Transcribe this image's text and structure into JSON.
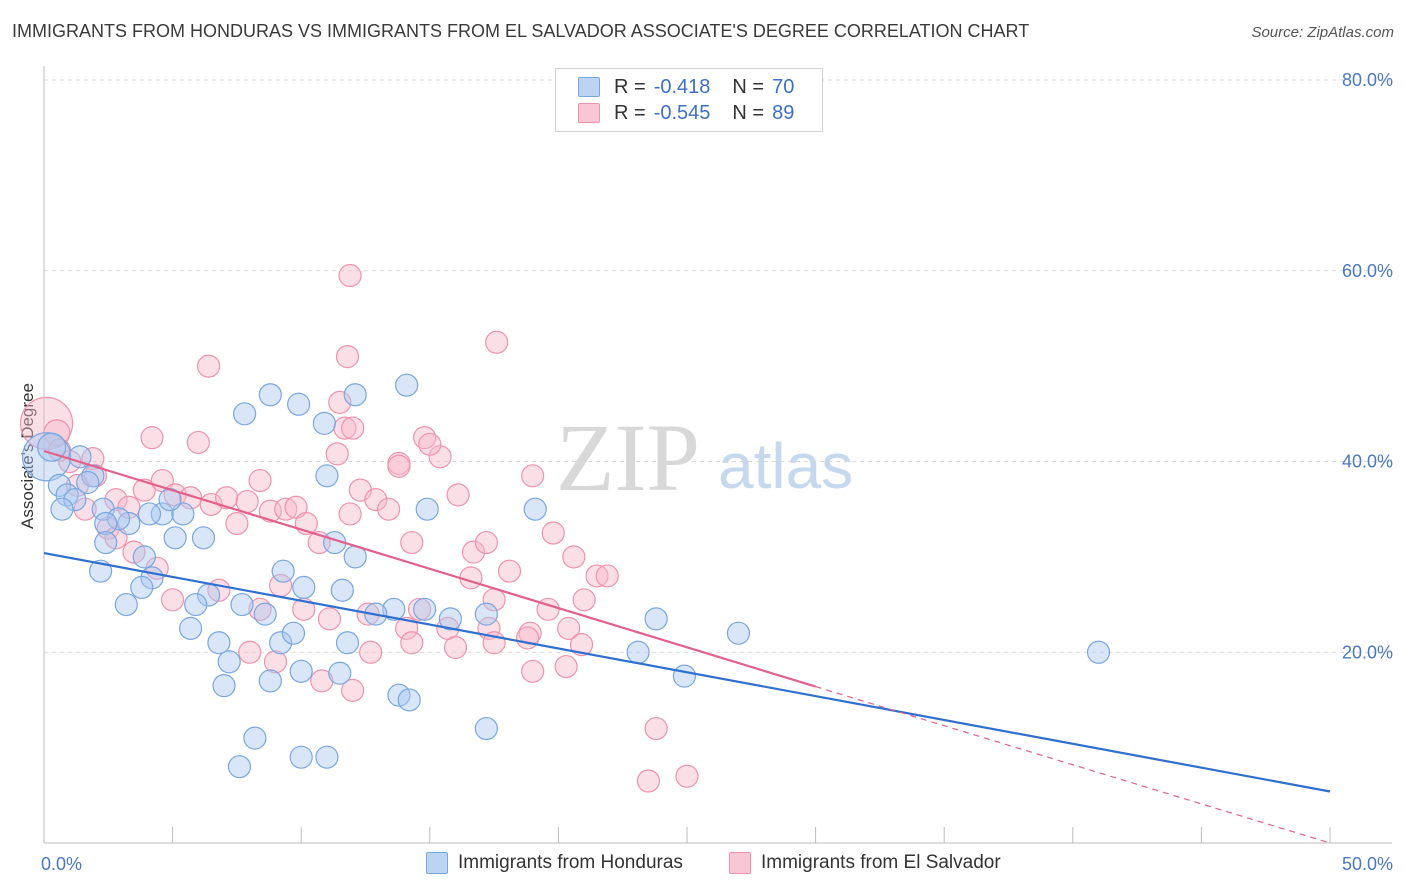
{
  "title": "IMMIGRANTS FROM HONDURAS VS IMMIGRANTS FROM EL SALVADOR ASSOCIATE'S DEGREE CORRELATION CHART",
  "source": "Source: ZipAtlas.com",
  "watermark": {
    "zip": "ZIP",
    "atlas": "atlas"
  },
  "legend": {
    "rows": [
      {
        "r_label": "R =",
        "r_value": "-0.418",
        "n_label": "N =",
        "n_value": "70"
      },
      {
        "r_label": "R =",
        "r_value": "-0.545",
        "n_label": "N =",
        "n_value": "89"
      }
    ]
  },
  "colors": {
    "honduras_fill": "#a9c7ef",
    "honduras_stroke": "#7aa6e0",
    "honduras_line": "#2f6fd0",
    "salvador_fill": "#f6b8ca",
    "salvador_stroke": "#ee93ad",
    "salvador_line": "#e26089"
  },
  "chart_data": {
    "type": "scatter",
    "title": "IMMIGRANTS FROM HONDURAS VS IMMIGRANTS FROM EL SALVADOR ASSOCIATE'S DEGREE CORRELATION CHART",
    "xlabel": "",
    "ylabel": "Associate's Degree",
    "xlim": [
      0,
      50
    ],
    "ylim": [
      0,
      80
    ],
    "x_tick_labels": [
      "0.0%",
      "50.0%"
    ],
    "y_tick_labels": [
      "20.0%",
      "40.0%",
      "60.0%",
      "80.0%"
    ],
    "y_ticks": [
      20,
      40,
      60,
      80
    ],
    "grid": true,
    "legend_position": "top-center",
    "series": [
      {
        "name": "Immigrants from Honduras",
        "r": -0.418,
        "n": 70,
        "trend": {
          "x0": 0,
          "y0": 30.4,
          "x1": 50,
          "y1": 5.4
        },
        "points": [
          [
            0.1,
            40.5,
            24
          ],
          [
            0.3,
            41.5,
            14
          ],
          [
            0.6,
            37.5,
            11
          ],
          [
            0.9,
            36.5,
            11
          ],
          [
            1.2,
            36,
            11
          ],
          [
            2.3,
            35,
            11
          ],
          [
            0.7,
            35,
            11
          ],
          [
            1.9,
            38.5,
            11
          ],
          [
            3.3,
            33.5,
            11
          ],
          [
            4.6,
            34.5,
            11
          ],
          [
            2.9,
            34,
            11
          ],
          [
            4.1,
            34.5,
            11
          ],
          [
            5.4,
            34.5,
            11
          ],
          [
            1.7,
            37.8,
            11
          ],
          [
            2.4,
            33.5,
            11
          ],
          [
            3.9,
            30,
            11
          ],
          [
            1.4,
            40.5,
            11
          ],
          [
            4.2,
            27.8,
            11
          ],
          [
            3.8,
            26.8,
            11
          ],
          [
            2.4,
            31.5,
            11
          ],
          [
            6.4,
            26,
            11
          ],
          [
            7.7,
            25,
            11
          ],
          [
            8.6,
            24,
            11
          ],
          [
            5.9,
            25,
            11
          ],
          [
            5.7,
            22.5,
            11
          ],
          [
            6.8,
            21,
            11
          ],
          [
            7.2,
            19,
            11
          ],
          [
            9.2,
            21,
            11
          ],
          [
            9.7,
            22,
            11
          ],
          [
            7.0,
            16.5,
            11
          ],
          [
            8.8,
            17,
            11
          ],
          [
            10.0,
            18,
            11
          ],
          [
            11.5,
            17.8,
            11
          ],
          [
            10.1,
            26.8,
            11
          ],
          [
            9.3,
            28.5,
            11
          ],
          [
            11.6,
            26.5,
            11
          ],
          [
            11.0,
            38.5,
            11
          ],
          [
            12.1,
            30,
            11
          ],
          [
            11.3,
            31.5,
            11
          ],
          [
            13.6,
            24.5,
            11
          ],
          [
            14.8,
            24.5,
            11
          ],
          [
            15.8,
            23.5,
            11
          ],
          [
            17.2,
            24,
            11
          ],
          [
            13.8,
            15.5,
            11
          ],
          [
            14.2,
            15,
            11
          ],
          [
            8.2,
            11,
            11
          ],
          [
            7.6,
            8,
            11
          ],
          [
            10.0,
            9,
            11
          ],
          [
            11.0,
            9,
            11
          ],
          [
            17.2,
            12,
            11
          ],
          [
            7.8,
            45,
            11
          ],
          [
            8.8,
            47,
            11
          ],
          [
            12.1,
            47,
            11
          ],
          [
            14.1,
            48,
            11
          ],
          [
            14.9,
            35,
            11
          ],
          [
            19.1,
            35,
            11
          ],
          [
            9.9,
            46,
            11
          ],
          [
            10.9,
            44,
            11
          ],
          [
            23.8,
            23.5,
            11
          ],
          [
            23.1,
            20,
            11
          ],
          [
            24.9,
            17.5,
            11
          ],
          [
            27.0,
            22,
            11
          ],
          [
            41.0,
            20,
            11
          ],
          [
            2.2,
            28.5,
            11
          ],
          [
            6.2,
            32,
            11
          ],
          [
            4.9,
            36,
            11
          ],
          [
            5.1,
            32,
            11
          ],
          [
            11.8,
            21,
            11
          ],
          [
            12.9,
            24,
            11
          ],
          [
            3.2,
            25,
            11
          ]
        ]
      },
      {
        "name": "Immigrants from El Salvador",
        "r": -0.545,
        "n": 89,
        "trend": {
          "x0": 0,
          "y0": 41.1,
          "x1": 30,
          "y1": 16.4
        },
        "trend_dashed_to": {
          "x": 50,
          "y": 0
        },
        "points": [
          [
            0.1,
            44,
            26
          ],
          [
            0.5,
            43,
            13
          ],
          [
            1.0,
            40,
            11
          ],
          [
            1.3,
            37.5,
            11
          ],
          [
            1.9,
            40.3,
            11
          ],
          [
            2.0,
            38.5,
            11
          ],
          [
            0.6,
            41.2,
            11
          ],
          [
            1.6,
            35,
            11
          ],
          [
            2.8,
            36,
            11
          ],
          [
            2.5,
            33,
            11
          ],
          [
            3.3,
            35.2,
            11
          ],
          [
            3.9,
            37,
            11
          ],
          [
            4.2,
            42.5,
            11
          ],
          [
            4.6,
            38,
            11
          ],
          [
            5.1,
            36.5,
            11
          ],
          [
            5.7,
            36.2,
            11
          ],
          [
            6.0,
            42,
            11
          ],
          [
            6.5,
            35.5,
            11
          ],
          [
            7.1,
            36.2,
            11
          ],
          [
            7.5,
            33.5,
            11
          ],
          [
            7.9,
            35.8,
            11
          ],
          [
            8.4,
            38,
            11
          ],
          [
            8.8,
            34.8,
            11
          ],
          [
            9.4,
            35,
            11
          ],
          [
            9.8,
            35.2,
            11
          ],
          [
            10.2,
            33.5,
            11
          ],
          [
            10.7,
            31.5,
            11
          ],
          [
            11.4,
            40.8,
            11
          ],
          [
            11.9,
            34.5,
            11
          ],
          [
            12.3,
            37,
            11
          ],
          [
            12.9,
            36,
            11
          ],
          [
            13.4,
            35,
            11
          ],
          [
            13.8,
            39.8,
            11
          ],
          [
            14.3,
            31.5,
            11
          ],
          [
            14.8,
            42.5,
            11
          ],
          [
            15.4,
            40.5,
            11
          ],
          [
            16.1,
            36.5,
            11
          ],
          [
            16.7,
            30.5,
            11
          ],
          [
            17.2,
            31.5,
            11
          ],
          [
            18.1,
            28.5,
            11
          ],
          [
            19.0,
            38.5,
            11
          ],
          [
            19.8,
            32.5,
            11
          ],
          [
            20.6,
            30,
            11
          ],
          [
            21.5,
            28,
            11
          ],
          [
            6.4,
            50,
            11
          ],
          [
            11.5,
            46.2,
            11
          ],
          [
            11.7,
            43.5,
            11
          ],
          [
            12.0,
            43.5,
            11
          ],
          [
            13.8,
            39.5,
            11
          ],
          [
            15.0,
            41.8,
            11
          ],
          [
            11.8,
            51,
            11
          ],
          [
            17.6,
            52.5,
            11
          ],
          [
            11.9,
            59.5,
            11
          ],
          [
            8.4,
            24.5,
            11
          ],
          [
            10.1,
            24.5,
            11
          ],
          [
            11.1,
            23.5,
            11
          ],
          [
            12.6,
            24,
            11
          ],
          [
            14.1,
            22.5,
            11
          ],
          [
            15.7,
            22.5,
            11
          ],
          [
            17.3,
            22.5,
            11
          ],
          [
            18.9,
            22,
            11
          ],
          [
            20.4,
            22.5,
            11
          ],
          [
            12.7,
            20,
            11
          ],
          [
            14.3,
            21,
            11
          ],
          [
            16.0,
            20.5,
            11
          ],
          [
            17.5,
            21,
            11
          ],
          [
            19.0,
            18,
            11
          ],
          [
            20.3,
            18.5,
            11
          ],
          [
            9.0,
            19,
            11
          ],
          [
            10.8,
            17,
            11
          ],
          [
            12.0,
            16,
            11
          ],
          [
            23.8,
            12,
            11
          ],
          [
            25.0,
            7,
            11
          ],
          [
            23.5,
            6.5,
            11
          ],
          [
            21.0,
            25.5,
            11
          ],
          [
            21.9,
            28,
            11
          ],
          [
            16.6,
            27.8,
            11
          ],
          [
            17.5,
            25.5,
            11
          ],
          [
            19.6,
            24.5,
            11
          ],
          [
            8.0,
            20,
            11
          ],
          [
            5.0,
            25.5,
            11
          ],
          [
            6.8,
            26.5,
            11
          ],
          [
            4.4,
            28.8,
            11
          ],
          [
            3.5,
            30.5,
            11
          ],
          [
            2.8,
            32,
            11
          ],
          [
            9.2,
            27,
            11
          ],
          [
            14.6,
            24.5,
            11
          ],
          [
            18.8,
            21.5,
            11
          ],
          [
            20.9,
            20.8,
            11
          ]
        ]
      }
    ]
  },
  "bottom_legend": {
    "honduras_label": "Immigrants from Honduras",
    "salvador_label": "Immigrants from El Salvador"
  }
}
